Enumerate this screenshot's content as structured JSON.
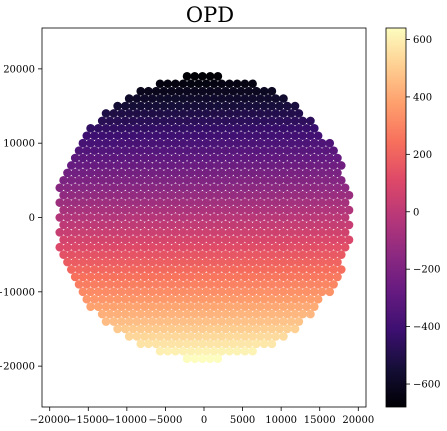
{
  "chart_data": {
    "type": "scatter",
    "title": "OPD",
    "xlabel": "",
    "ylabel": "",
    "xlim": [
      -21000,
      21000
    ],
    "ylim": [
      -25500,
      25500
    ],
    "xticks": [
      -20000,
      -15000,
      -10000,
      -5000,
      0,
      5000,
      10000,
      15000,
      20000
    ],
    "xtick_labels": [
      "−20000",
      "−15000",
      "−10000",
      "−5000",
      "0",
      "5000",
      "10000",
      "15000",
      "20000"
    ],
    "yticks": [
      -20000,
      -10000,
      0,
      10000,
      20000
    ],
    "ytick_labels": [
      "−20000",
      "−10000",
      "0",
      "10000",
      "20000"
    ],
    "colormap": "magma",
    "colorbar": {
      "vmin": -680,
      "vmax": 640,
      "ticks": [
        -600,
        -400,
        -200,
        0,
        200,
        400,
        600
      ],
      "tick_labels": [
        "−600",
        "−400",
        "−200",
        "0",
        "200",
        "400",
        "600"
      ]
    },
    "aperture": {
      "radius": 19200,
      "y_min": -19000,
      "y_max": 19000,
      "grid_spacing": 1000
    },
    "opd_model": {
      "description_free": true,
      "value_at_y_min": 640,
      "value_at_y_max": -680
    },
    "grid": false
  }
}
